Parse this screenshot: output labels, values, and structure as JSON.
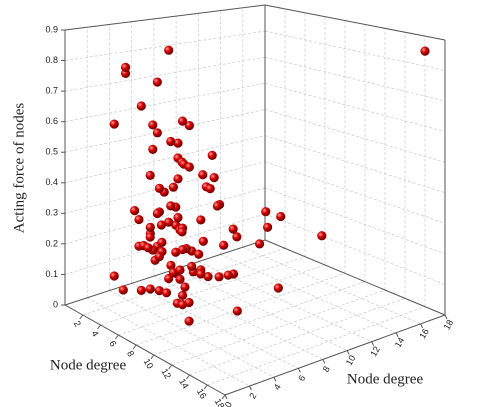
{
  "chart_data": {
    "type": "scatter3d",
    "xlabel": "Node degree",
    "ylabel": "Node degree",
    "zlabel": "Acting force of nodes",
    "color": "#d40000",
    "grid": true,
    "xlim": [
      0,
      18
    ],
    "xticks": [
      2,
      4,
      6,
      8,
      10,
      12,
      14,
      16,
      18
    ],
    "ylim": [
      0,
      18
    ],
    "yticks": [
      0,
      2,
      4,
      6,
      8,
      10,
      12,
      14,
      16,
      18
    ],
    "zlim": [
      0,
      0.9
    ],
    "zticks": [
      0,
      0.1,
      0.2,
      0.3,
      0.4,
      0.5,
      0.6,
      0.7,
      0.8,
      0.9
    ],
    "x": [
      3,
      5,
      7,
      4,
      6,
      8,
      2,
      9,
      5,
      6,
      4,
      7,
      3,
      8,
      10,
      5,
      6,
      2,
      4,
      7,
      9,
      11,
      3,
      5,
      6,
      8,
      4,
      7,
      5,
      3,
      6,
      2,
      8,
      4,
      10,
      5,
      7,
      3,
      6,
      12,
      4,
      5,
      9,
      6,
      2,
      8,
      3,
      7,
      5,
      4,
      6,
      10,
      3,
      8,
      5,
      7,
      2,
      4,
      9,
      6,
      14,
      3,
      5,
      7,
      11,
      4,
      6,
      8,
      2,
      5,
      3,
      9,
      7,
      4,
      6,
      13,
      5,
      8,
      3,
      6,
      4,
      7,
      2,
      10,
      5,
      6,
      3,
      8,
      4,
      7,
      16,
      5,
      9,
      3,
      6,
      12,
      4,
      7,
      5,
      8
    ],
    "y": [
      2,
      4,
      3,
      6,
      5,
      2,
      7,
      3,
      8,
      4,
      5,
      3,
      9,
      4,
      2,
      6,
      3,
      5,
      10,
      7,
      4,
      6,
      2,
      8,
      5,
      3,
      12,
      4,
      6,
      3,
      7,
      5,
      4,
      9,
      3,
      6,
      2,
      8,
      5,
      4,
      3,
      10,
      5,
      2,
      6,
      4,
      8,
      3,
      7,
      14,
      5,
      3,
      6,
      2,
      9,
      4,
      11,
      6,
      3,
      8,
      4,
      7,
      3,
      5,
      2,
      6,
      13,
      4,
      9,
      5,
      6,
      3,
      8,
      5,
      2,
      4,
      7,
      16,
      3,
      10,
      5,
      2,
      6,
      4,
      8,
      3,
      5,
      7,
      2,
      12,
      18,
      6,
      4,
      7,
      3,
      9,
      5,
      2,
      15,
      4
    ],
    "z": [
      0.12,
      0.18,
      0.25,
      0.08,
      0.3,
      0.15,
      0.22,
      0.35,
      0.1,
      0.42,
      0.2,
      0.28,
      0.05,
      0.33,
      0.14,
      0.5,
      0.24,
      0.17,
      0.38,
      0.12,
      0.27,
      0.2,
      0.62,
      0.09,
      0.36,
      0.22,
      0.15,
      0.45,
      0.3,
      0.78,
      0.18,
      0.26,
      0.11,
      0.4,
      0.07,
      0.55,
      0.32,
      0.2,
      0.14,
      0.23,
      0.34,
      0.16,
      0.29,
      0.72,
      0.19,
      0.08,
      0.44,
      0.25,
      0.6,
      0.1,
      0.21,
      0.13,
      0.37,
      0.26,
      0.48,
      0.17,
      0.31,
      0.85,
      0.22,
      0.39,
      0.15,
      0.52,
      0.24,
      0.11,
      0.33,
      0.27,
      0.2,
      0.68,
      0.41,
      0.06,
      0.29,
      0.19,
      0.35,
      0.58,
      0.12,
      0.25,
      0.46,
      0.16,
      0.8,
      0.23,
      0.31,
      0.14,
      0.4,
      0.21,
      0.27,
      0.65,
      0.18,
      0.37,
      0.09,
      0.28,
      0.85,
      0.43,
      0.22,
      0.3,
      0.57,
      0.13,
      0.75,
      0.34,
      0.2,
      0.26
    ]
  }
}
